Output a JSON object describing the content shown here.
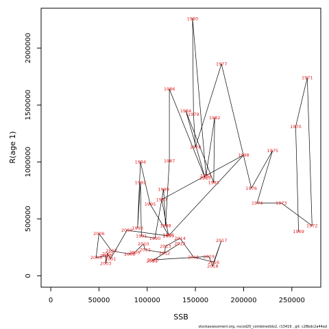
{
  "chart_data": {
    "type": "line",
    "xlabel": "SSB",
    "ylabel": "R(age 1)",
    "xlim": [
      -10000,
      280000
    ],
    "ylim": [
      -100000,
      2350000
    ],
    "x_ticks": [
      0,
      50000,
      100000,
      150000,
      200000,
      250000
    ],
    "x_tick_labels": [
      "0",
      "50000",
      "100000",
      "150000",
      "200000",
      "250000"
    ],
    "y_ticks": [
      0,
      500000,
      1000000,
      1500000,
      2000000
    ],
    "y_tick_labels": [
      "0",
      "500000",
      "1000000",
      "1500000",
      "2000000"
    ],
    "label_color": "#e41a1c",
    "line_color": "#000000",
    "grid": false,
    "points": [
      {
        "label": "1969",
        "x": 257000,
        "y": 390000
      },
      {
        "label": "1970",
        "x": 254000,
        "y": 1310000
      },
      {
        "label": "1971",
        "x": 266000,
        "y": 1740000
      },
      {
        "label": "1972",
        "x": 271000,
        "y": 440000
      },
      {
        "label": "1973",
        "x": 239000,
        "y": 640000
      },
      {
        "label": "1974",
        "x": 214000,
        "y": 640000
      },
      {
        "label": "1975",
        "x": 230000,
        "y": 1100000
      },
      {
        "label": "1976",
        "x": 208000,
        "y": 770000
      },
      {
        "label": "1977",
        "x": 177000,
        "y": 1860000
      },
      {
        "label": "1978",
        "x": 150000,
        "y": 1130000
      },
      {
        "label": "1979",
        "x": 148000,
        "y": 1420000
      },
      {
        "label": "1980",
        "x": 147000,
        "y": 2260000
      },
      {
        "label": "1981",
        "x": 161000,
        "y": 880000
      },
      {
        "label": "1982",
        "x": 170000,
        "y": 1390000
      },
      {
        "label": "1983",
        "x": 169000,
        "y": 820000
      },
      {
        "label": "1984",
        "x": 140000,
        "y": 1450000
      },
      {
        "label": "1985",
        "x": 160000,
        "y": 860000
      },
      {
        "label": "1986",
        "x": 123000,
        "y": 1640000
      },
      {
        "label": "1987",
        "x": 123000,
        "y": 1010000
      },
      {
        "label": "1988",
        "x": 119000,
        "y": 440000
      },
      {
        "label": "1989",
        "x": 117000,
        "y": 760000
      },
      {
        "label": "1990",
        "x": 108000,
        "y": 330000
      },
      {
        "label": "1991",
        "x": 94000,
        "y": 350000
      },
      {
        "label": "1992",
        "x": 93000,
        "y": 820000
      },
      {
        "label": "1993",
        "x": 90000,
        "y": 420000
      },
      {
        "label": "1994",
        "x": 93000,
        "y": 1000000
      },
      {
        "label": "1995",
        "x": 103000,
        "y": 630000
      },
      {
        "label": "1996",
        "x": 122000,
        "y": 360000
      },
      {
        "label": "1997",
        "x": 115000,
        "y": 670000
      },
      {
        "label": "1998",
        "x": 200000,
        "y": 1060000
      },
      {
        "label": "1999",
        "x": 122000,
        "y": 350000
      },
      {
        "label": "2000",
        "x": 79000,
        "y": 400000
      },
      {
        "label": "2001",
        "x": 62000,
        "y": 150000
      },
      {
        "label": "2002",
        "x": 59000,
        "y": 195000
      },
      {
        "label": "2003",
        "x": 57000,
        "y": 110000
      },
      {
        "label": "2004",
        "x": 57000,
        "y": 175000
      },
      {
        "label": "2005",
        "x": 47000,
        "y": 160000
      },
      {
        "label": "2006",
        "x": 50000,
        "y": 370000
      },
      {
        "label": "2007",
        "x": 63000,
        "y": 220000
      },
      {
        "label": "2008",
        "x": 82000,
        "y": 190000
      },
      {
        "label": "2009",
        "x": 87000,
        "y": 205000
      },
      {
        "label": "2010",
        "x": 96000,
        "y": 280000
      },
      {
        "label": "2011",
        "x": 98000,
        "y": 230000
      },
      {
        "label": "2012",
        "x": 118000,
        "y": 200000
      },
      {
        "label": "2013",
        "x": 119000,
        "y": 260000
      },
      {
        "label": "2014",
        "x": 134000,
        "y": 330000
      },
      {
        "label": "2015",
        "x": 148000,
        "y": 165000
      },
      {
        "label": "2016",
        "x": 169000,
        "y": 120000
      },
      {
        "label": "2017",
        "x": 177000,
        "y": 310000
      },
      {
        "label": "2018",
        "x": 168000,
        "y": 85000
      },
      {
        "label": "2019",
        "x": 164000,
        "y": 170000
      },
      {
        "label": "2020",
        "x": 106000,
        "y": 140000
      },
      {
        "label": "2021",
        "x": 105000,
        "y": 130000
      },
      {
        "label": "2022",
        "x": 134000,
        "y": 285000
      }
    ]
  },
  "footer_text": "stockassessment.org, nscod20_combinedidx2, r13419 , git: c28bdc2a44ad"
}
